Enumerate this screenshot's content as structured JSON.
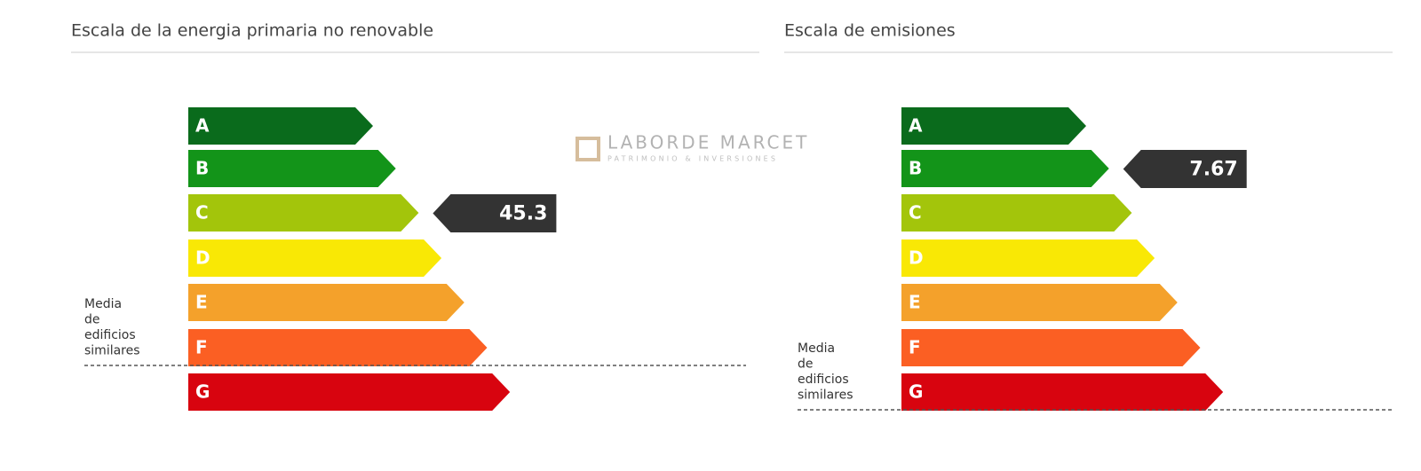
{
  "watermark": {
    "name": "LABORDE MARCET",
    "tagline": "PATRIMONIO & INVERSIONES"
  },
  "grades": [
    {
      "letter": "A",
      "color": "#0a6b1c"
    },
    {
      "letter": "B",
      "color": "#139419"
    },
    {
      "letter": "C",
      "color": "#a3c50b"
    },
    {
      "letter": "D",
      "color": "#f9e805"
    },
    {
      "letter": "E",
      "color": "#f4a12b"
    },
    {
      "letter": "F",
      "color": "#fb5f23"
    },
    {
      "letter": "G",
      "color": "#d8040f"
    }
  ],
  "average_label": [
    "Media",
    "de",
    "edificios",
    "similares"
  ],
  "panels": [
    {
      "title": "Escala de la energia primaria no renovable",
      "rating": "C",
      "value": "45.3",
      "average_below": "F"
    },
    {
      "title": "Escala de emisiones",
      "rating": "B",
      "value": "7.67",
      "average_below": "G"
    }
  ]
}
